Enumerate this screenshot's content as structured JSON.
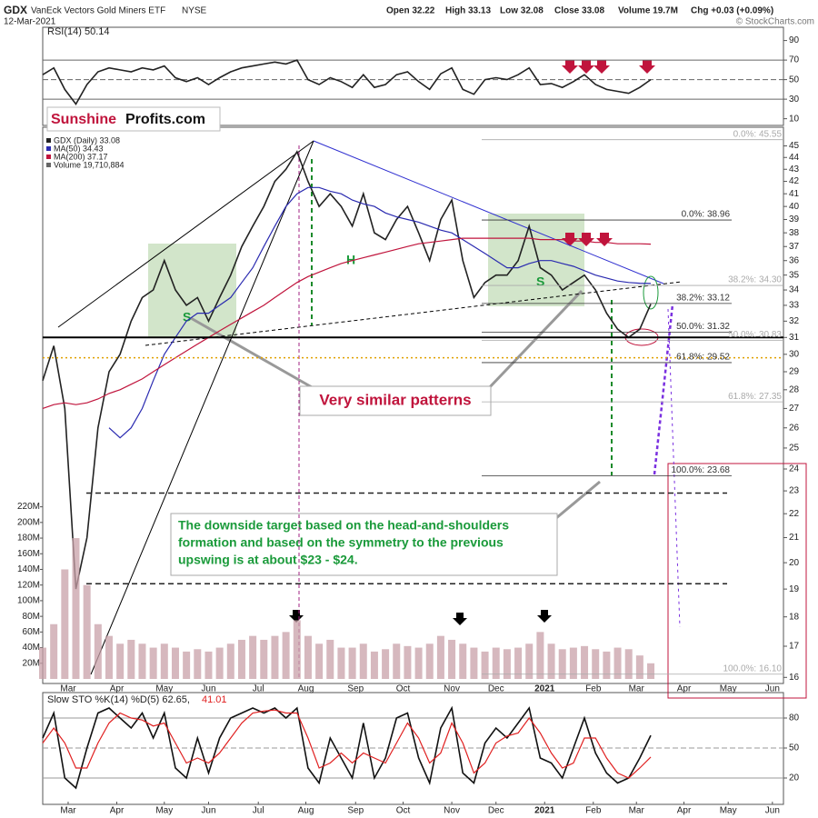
{
  "header": {
    "symbol": "GDX",
    "name": "VanEck Vectors Gold Miners ETF",
    "exchange": "NYSE",
    "date": "12-Mar-2021",
    "copyright": "© StockCharts.com",
    "ohlc": [
      "Open 32.22",
      "High 33.13",
      "Low 32.08",
      "Close 33.08",
      "Volume 19.7M",
      "Chg +0.03 (+0.09%)"
    ],
    "logo": [
      "Sunshine",
      "Profits.com"
    ],
    "annotations": [
      "Very similar patterns",
      "H",
      "S",
      "S"
    ],
    "note": [
      "The downside target based on the head-and-shoulders",
      "formation and based on the symmetry to the previous",
      "upswing is at about $23 - $24."
    ]
  },
  "chart_data": [
    {
      "type": "line",
      "log": true,
      "xlim": [
        0,
        67
      ],
      "ylim": [
        15.7,
        46.5
      ],
      "yticks": [
        16,
        17,
        18,
        19,
        20,
        21,
        22,
        23,
        24,
        25,
        26,
        27,
        28,
        29,
        30,
        31,
        32,
        33,
        34,
        35,
        36,
        37,
        38,
        39,
        40,
        41,
        42,
        43,
        44,
        45
      ],
      "xticks": [
        {
          "value": 2.3,
          "label": "Mar"
        },
        {
          "value": 6.7,
          "label": "Apr"
        },
        {
          "value": 11,
          "label": "May"
        },
        {
          "value": 15,
          "label": "Jun"
        },
        {
          "value": 19.5,
          "label": "Jul"
        },
        {
          "value": 23.8,
          "label": "Aug"
        },
        {
          "value": 28.3,
          "label": "Sep"
        },
        {
          "value": 32.6,
          "label": "Oct"
        },
        {
          "value": 37,
          "label": "Nov"
        },
        {
          "value": 41,
          "label": "Dec"
        },
        {
          "value": 45.4,
          "label": "2021"
        },
        {
          "value": 49.8,
          "label": "Feb"
        },
        {
          "value": 53.7,
          "label": "Mar"
        },
        {
          "value": 58,
          "label": "Apr"
        },
        {
          "value": 62,
          "label": "May"
        },
        {
          "value": 66,
          "label": "Jun"
        }
      ],
      "series": [
        {
          "name": "GDX (Daily) 33.08",
          "color": "#222222",
          "values": [
            28.5,
            30.5,
            27,
            19,
            21,
            26,
            29,
            30,
            32,
            33.5,
            34,
            36,
            34,
            33,
            33.5,
            32,
            33.5,
            35,
            37,
            38.5,
            40,
            42,
            43,
            44.5,
            42,
            40,
            41,
            40,
            38.5,
            41,
            38,
            37.5,
            39,
            40,
            38,
            36,
            39,
            40.5,
            36,
            33.5,
            34.5,
            35,
            35,
            36,
            38.5,
            35.5,
            35,
            34,
            34.5,
            35,
            34,
            32.5,
            31.5,
            31,
            31.5,
            33.08
          ]
        },
        {
          "name": "MA(50) 34.43",
          "color": "#2a2ab0",
          "values": [
            null,
            null,
            null,
            null,
            null,
            null,
            26,
            25.5,
            26,
            27,
            28.5,
            30,
            31,
            32,
            32.5,
            32.5,
            33,
            33.5,
            34.5,
            35.5,
            37,
            38.5,
            40,
            41,
            41.5,
            41.5,
            41.2,
            41,
            40.5,
            40.2,
            40,
            39.5,
            39.2,
            39,
            38.8,
            38.5,
            38.2,
            38,
            37.5,
            37,
            36.5,
            36,
            35.5,
            35.5,
            35.8,
            36,
            36,
            35.8,
            35.6,
            35.3,
            35,
            34.8,
            34.6,
            34.5,
            34.45,
            34.43
          ]
        },
        {
          "name": "MA(200) 37.17",
          "color": "#c0143c",
          "values": [
            27,
            27.2,
            27.3,
            27.2,
            27.3,
            27.5,
            27.8,
            28,
            28.3,
            28.6,
            29,
            29.4,
            29.8,
            30.2,
            30.6,
            31,
            31.4,
            31.8,
            32.2,
            32.6,
            33,
            33.5,
            34,
            34.5,
            34.9,
            35.2,
            35.5,
            35.8,
            36,
            36.2,
            36.4,
            36.6,
            36.8,
            37,
            37.2,
            37.3,
            37.4,
            37.5,
            37.6,
            37.6,
            37.6,
            37.6,
            37.6,
            37.6,
            37.6,
            37.5,
            37.5,
            37.5,
            37.4,
            37.4,
            37.3,
            37.3,
            37.2,
            37.2,
            37.2,
            37.17
          ]
        }
      ],
      "fib_levels": [
        {
          "label": "0.0%: 45.55",
          "value": 45.55,
          "color": "#aaaaaa"
        },
        {
          "label": "0.0%: 38.96",
          "value": 38.96,
          "color": "#333333"
        },
        {
          "label": "38.2%: 34.30",
          "value": 34.3,
          "color": "#aaaaaa"
        },
        {
          "label": "38.2%: 33.12",
          "value": 33.12,
          "color": "#333333"
        },
        {
          "label": "50.0%: 31.32",
          "value": 31.32,
          "color": "#333333"
        },
        {
          "label": "50.0%: 30.83",
          "value": 30.83,
          "color": "#aaaaaa"
        },
        {
          "label": "61.8%: 29.52",
          "value": 29.52,
          "color": "#333333"
        },
        {
          "label": "61.8%: 27.35",
          "value": 27.35,
          "color": "#aaaaaa"
        },
        {
          "label": "100.0%: 23.68",
          "value": 23.68,
          "color": "#333333"
        },
        {
          "label": "100.0%: 16.10",
          "value": 16.1,
          "color": "#aaaaaa"
        }
      ],
      "reference_lines": [
        {
          "value": 31,
          "color": "#000000"
        },
        {
          "value": 29.8,
          "color": "#e0a000"
        },
        {
          "value": 22.9,
          "color": "#222222"
        },
        {
          "value": 19.2,
          "color": "#222222"
        }
      ]
    },
    {
      "type": "line",
      "title": "RSI(14) 50.14",
      "ylim": [
        5,
        98
      ],
      "yticks": [
        10,
        30,
        50,
        70,
        90
      ],
      "grid_values": [
        30,
        50,
        70
      ],
      "series": [
        {
          "color": "#222222",
          "values": [
            55,
            62,
            40,
            25,
            45,
            58,
            62,
            60,
            58,
            62,
            60,
            64,
            52,
            48,
            52,
            45,
            52,
            58,
            62,
            64,
            66,
            68,
            66,
            70,
            50,
            45,
            52,
            48,
            42,
            55,
            42,
            45,
            55,
            58,
            48,
            40,
            56,
            62,
            40,
            35,
            50,
            52,
            50,
            55,
            62,
            45,
            46,
            42,
            48,
            55,
            45,
            40,
            38,
            36,
            42,
            50
          ]
        }
      ]
    },
    {
      "type": "line",
      "title": "Slow STO %K(14) %D(5) 62.65,",
      "title_red": "41.01",
      "ylim": [
        0,
        100
      ],
      "yticks": [
        20,
        50,
        80
      ],
      "series": [
        {
          "color": "#111111",
          "values": [
            60,
            85,
            20,
            10,
            50,
            85,
            90,
            80,
            70,
            85,
            60,
            85,
            30,
            20,
            60,
            25,
            60,
            80,
            85,
            90,
            85,
            90,
            80,
            90,
            30,
            15,
            60,
            40,
            20,
            75,
            20,
            40,
            80,
            85,
            40,
            15,
            70,
            90,
            25,
            15,
            55,
            70,
            60,
            75,
            90,
            40,
            35,
            20,
            50,
            80,
            45,
            25,
            15,
            20,
            40,
            62.65
          ]
        },
        {
          "color": "#e02020",
          "values": [
            55,
            70,
            55,
            30,
            30,
            55,
            75,
            85,
            80,
            78,
            72,
            75,
            55,
            35,
            40,
            35,
            45,
            60,
            75,
            85,
            87,
            88,
            85,
            85,
            60,
            30,
            35,
            45,
            35,
            45,
            40,
            35,
            55,
            75,
            60,
            35,
            45,
            75,
            55,
            25,
            35,
            55,
            62,
            65,
            80,
            65,
            45,
            30,
            35,
            60,
            60,
            40,
            25,
            20,
            30,
            41.01
          ]
        }
      ]
    },
    {
      "type": "bar",
      "ylim": [
        0,
        230
      ],
      "yticks": [
        {
          "value": 20,
          "label": "20M"
        },
        {
          "value": 40,
          "label": "40M"
        },
        {
          "value": 60,
          "label": "60M"
        },
        {
          "value": 80,
          "label": "80M"
        },
        {
          "value": 100,
          "label": "100M"
        },
        {
          "value": 120,
          "label": "120M"
        },
        {
          "value": 140,
          "label": "140M"
        },
        {
          "value": 160,
          "label": "160M"
        },
        {
          "value": 180,
          "label": "180M"
        },
        {
          "value": 200,
          "label": "200M"
        },
        {
          "value": 220,
          "label": "220M"
        }
      ],
      "series": [
        {
          "name": "Volume 19,710,884",
          "color": "#c8a0a8",
          "values": [
            40,
            70,
            140,
            180,
            120,
            70,
            55,
            45,
            50,
            45,
            40,
            45,
            40,
            35,
            38,
            35,
            40,
            45,
            50,
            55,
            50,
            55,
            60,
            75,
            55,
            45,
            50,
            40,
            40,
            45,
            35,
            38,
            45,
            42,
            40,
            45,
            55,
            50,
            45,
            40,
            35,
            40,
            38,
            40,
            45,
            60,
            45,
            38,
            40,
            42,
            38,
            35,
            40,
            38,
            30,
            20
          ]
        }
      ]
    }
  ]
}
